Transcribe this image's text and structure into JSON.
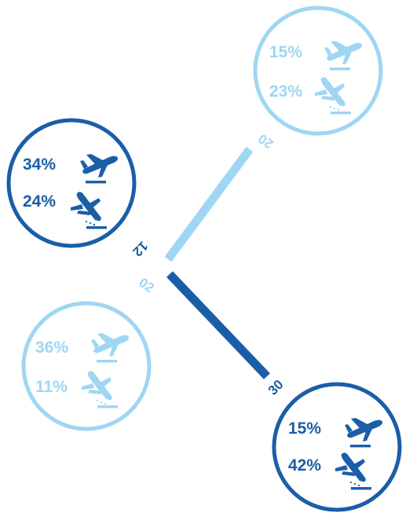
{
  "colors": {
    "dark": "#1a5ea8",
    "light": "#9fd6f3"
  },
  "runways": [
    {
      "id": "runway-02-20",
      "end_a": "02",
      "end_b": "20",
      "color": "light"
    },
    {
      "id": "runway-12-30",
      "end_a": "12",
      "end_b": "30",
      "color": "dark"
    }
  ],
  "circles": {
    "top_right": {
      "runway_end": "20",
      "color": "light",
      "takeoff": "15%",
      "landing": "23%"
    },
    "upper_left": {
      "runway_end": "12",
      "color": "dark",
      "takeoff": "34%",
      "landing": "24%"
    },
    "lower_left": {
      "runway_end": "02",
      "color": "light",
      "takeoff": "36%",
      "landing": "11%"
    },
    "bottom_right": {
      "runway_end": "30",
      "color": "dark",
      "takeoff": "15%",
      "landing": "42%"
    }
  },
  "icons": {
    "takeoff": "airplane-takeoff-icon",
    "landing": "airplane-landing-icon"
  }
}
